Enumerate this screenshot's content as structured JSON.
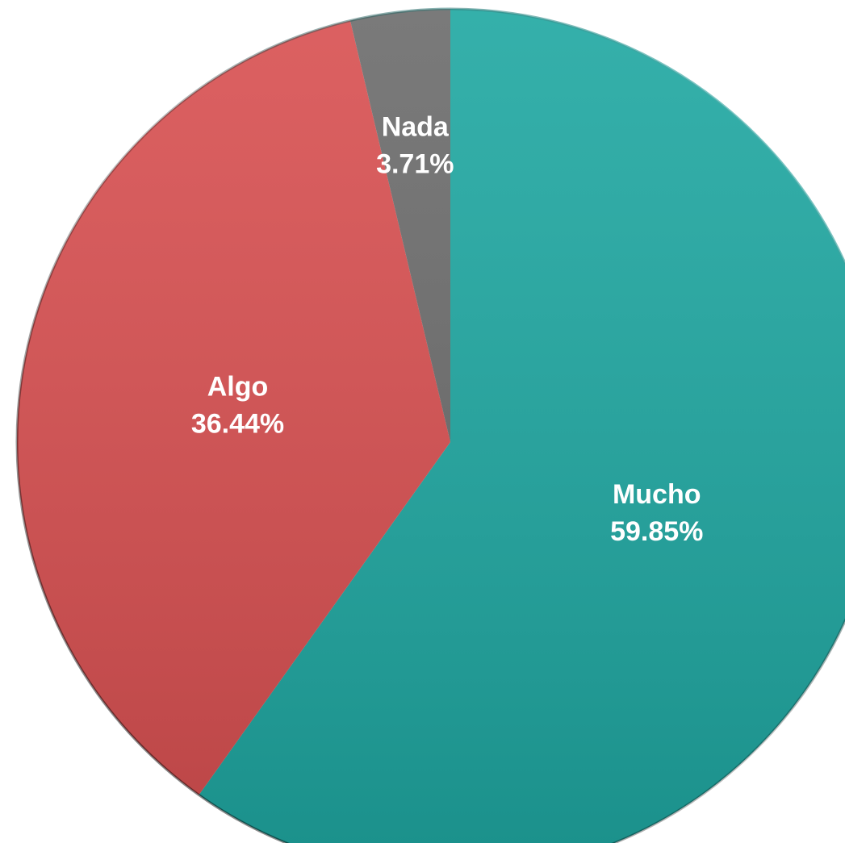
{
  "chart_data": {
    "type": "pie",
    "title": "",
    "start": "top",
    "direction": "clockwise",
    "legend": "none",
    "slices": [
      {
        "label": "Mucho",
        "value": 59.85,
        "value_label": "59.85%",
        "color": "#1ea7a1"
      },
      {
        "label": "Algo",
        "value": 36.44,
        "value_label": "36.44%",
        "color": "#d84f50"
      },
      {
        "label": "Nada",
        "value": 3.71,
        "value_label": "3.71%",
        "color": "#6b6b6b"
      }
    ]
  }
}
